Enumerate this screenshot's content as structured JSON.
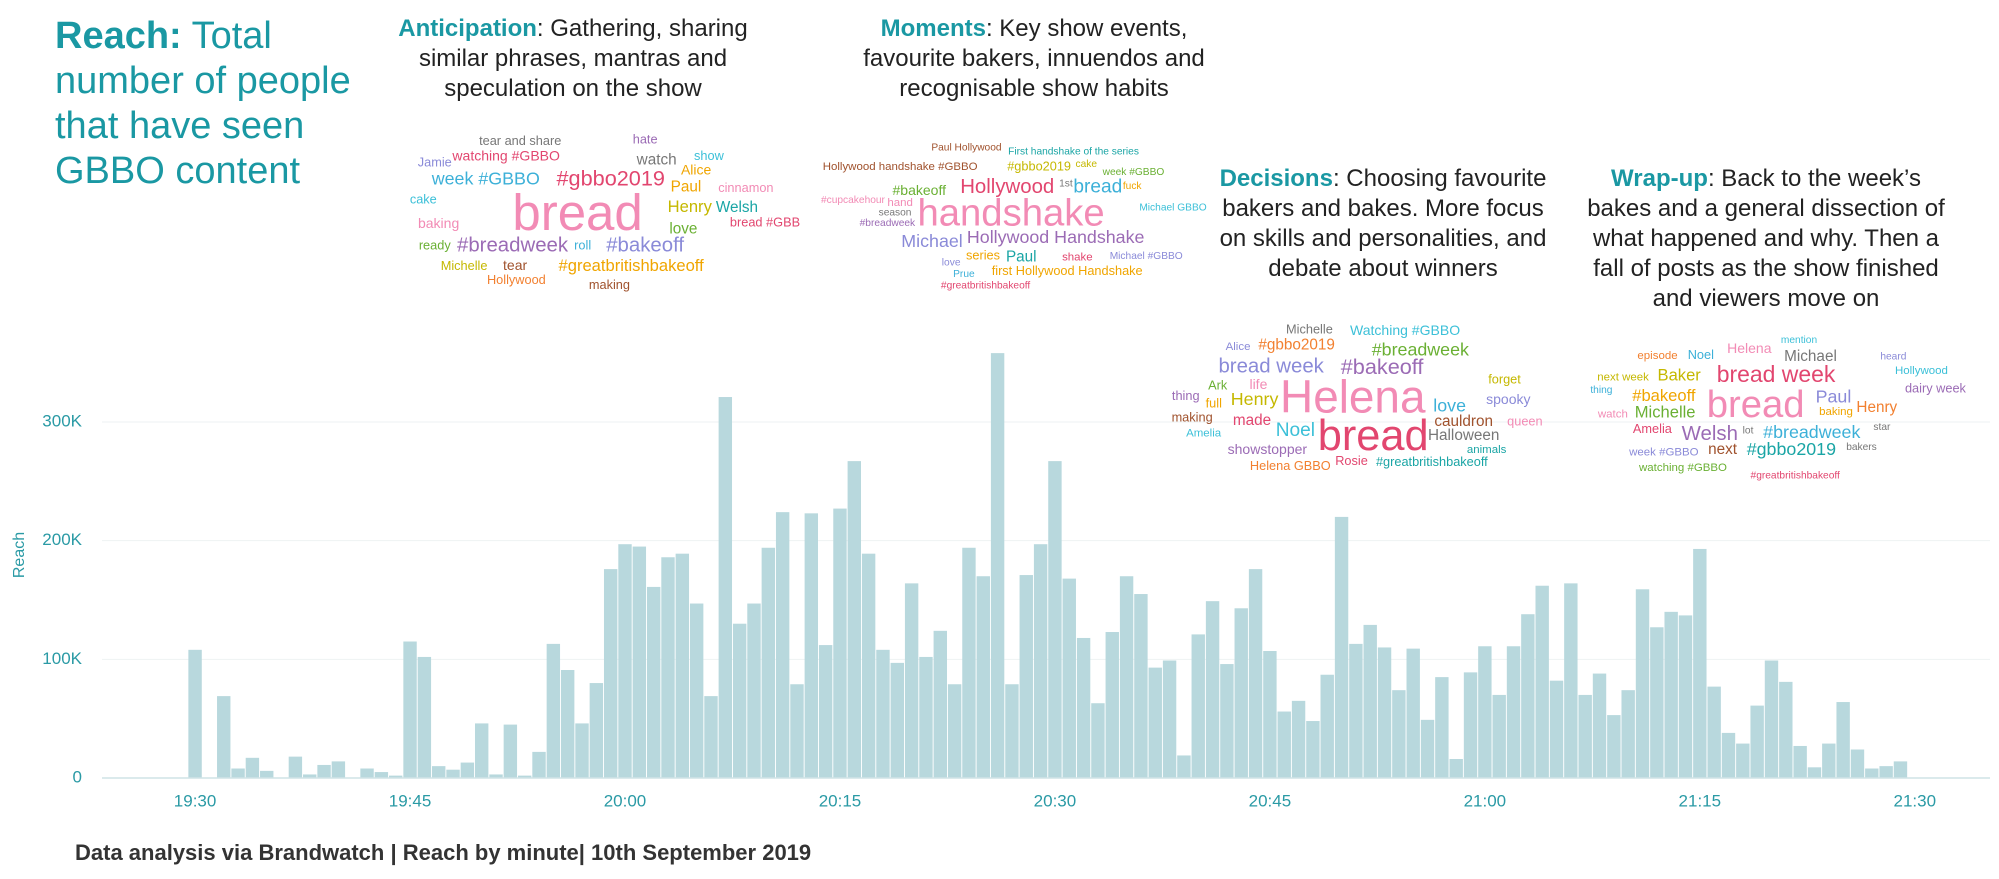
{
  "chart_data": {
    "type": "bar",
    "title": {
      "head": "Reach:",
      "text": "Total number of people that have seen GBBO content"
    },
    "y_label": "Reach",
    "source": "Data analysis via Brandwatch | Reach by minute| 10th September 2019",
    "categories": [
      "19:30",
      null,
      null,
      null,
      null,
      null,
      null,
      null,
      null,
      null,
      null,
      null,
      null,
      null,
      null,
      "19:45",
      null,
      null,
      null,
      null,
      null,
      null,
      null,
      null,
      null,
      null,
      null,
      null,
      null,
      null,
      "20:00",
      null,
      null,
      null,
      null,
      null,
      null,
      null,
      null,
      null,
      null,
      null,
      null,
      null,
      null,
      "20:15",
      null,
      null,
      null,
      null,
      null,
      null,
      null,
      null,
      null,
      null,
      null,
      null,
      null,
      null,
      "20:30",
      null,
      null,
      null,
      null,
      null,
      null,
      null,
      null,
      null,
      null,
      null,
      null,
      null,
      null,
      "20:45",
      null,
      null,
      null,
      null,
      null,
      null,
      null,
      null,
      null,
      null,
      null,
      null,
      null,
      null,
      "21:00",
      null,
      null,
      null,
      null,
      null,
      null,
      null,
      null,
      null,
      null,
      null,
      null,
      null,
      null,
      "21:15",
      null,
      null,
      null,
      null,
      null,
      null,
      null,
      null,
      null,
      null,
      null,
      null,
      null,
      null,
      "21:30"
    ],
    "values": [
      108000,
      0,
      69000,
      8000,
      17000,
      6000,
      0,
      18000,
      3000,
      11000,
      14000,
      0,
      8000,
      5000,
      2000,
      115000,
      102000,
      10000,
      7000,
      13000,
      46000,
      3000,
      45000,
      2000,
      22000,
      113000,
      91000,
      46000,
      80000,
      176000,
      197000,
      195000,
      161000,
      186000,
      189000,
      147000,
      69000,
      321000,
      130000,
      147000,
      194000,
      224000,
      79000,
      223000,
      112000,
      227000,
      267000,
      189000,
      108000,
      97000,
      164000,
      102000,
      124000,
      79000,
      194000,
      170000,
      358000,
      79000,
      171000,
      197000,
      267000,
      168000,
      118000,
      63000,
      123000,
      170000,
      155000,
      93000,
      99000,
      19000,
      121000,
      149000,
      96000,
      143000,
      176000,
      107000,
      56000,
      65000,
      48000,
      87000,
      220000,
      113000,
      129000,
      110000,
      74000,
      109000,
      49000,
      85000,
      16000,
      89000,
      111000,
      70000,
      111000,
      138000,
      162000,
      82000,
      164000,
      70000,
      88000,
      53000,
      74000,
      159000,
      127000,
      140000,
      137000,
      193000,
      77000,
      38000,
      29000,
      61000,
      99000,
      81000,
      27000,
      9000,
      29000,
      64000,
      24000,
      8000,
      10000,
      14000,
      null
    ],
    "color": "#b8d8dd",
    "ylim": [
      0,
      380000
    ],
    "yticks": [
      0,
      {
        "value": 100000,
        "label": "100K"
      },
      {
        "value": 200000,
        "label": "200K"
      },
      {
        "value": 300000,
        "label": "300K"
      }
    ],
    "grid": true
  },
  "annotations": [
    {
      "head": "Anticipation",
      "text": ": Gathering, sharing similar phrases, mantras and speculation on the show",
      "words": [
        "tear and share",
        "hate",
        "watching #GBBO",
        "show",
        "Jamie",
        "watch",
        "Alice",
        "week #GBBO",
        "#gbbo2019",
        "Paul",
        "cinnamon",
        "cake",
        "bread",
        "Henry",
        "Welsh",
        "baking",
        "bread #GBB",
        "love",
        "ready",
        "#breadweek",
        "roll",
        "#bakeoff",
        "Michelle",
        "tear",
        "#greatbritishbakeoff",
        "Hollywood",
        "making"
      ]
    },
    {
      "head": "Moments",
      "text": ": Key show events, favourite bakers, innuendos and recognisable show habits",
      "words": [
        "Paul Hollywood",
        "First handshake of the series",
        "Hollywood handshake #GBBO",
        "#gbbo2019",
        "cake",
        "week #GBBO",
        "fuck",
        "Hollywood",
        "1st",
        "bread",
        "#bakeoff",
        "#cupcakehour",
        "hand",
        "handshake",
        "Michael GBBO",
        "season",
        "#breadweek",
        "Michael",
        "Hollywood Handshake",
        "series",
        "Paul",
        "shake",
        "Michael #GBBO",
        "love",
        "Prue",
        "first Hollywood Handshake",
        "#greatbritishbakeoff"
      ]
    },
    {
      "head": "Decisions",
      "text": ": Choosing favourite bakers and bakes. More focus on skills and personalities, and debate about winners",
      "words": [
        "Michelle",
        "Watching #GBBO",
        "Alice",
        "#gbbo2019",
        "#breadweek",
        "bread week",
        "#bakeoff",
        "forget",
        "Ark",
        "life",
        "Helena",
        "spooky",
        "thing",
        "full",
        "Henry",
        "love",
        "making",
        "made",
        "cauldron",
        "queen",
        "Noel",
        "bread",
        "Amelia",
        "Halloween",
        "showstopper",
        "animals",
        "Rosie",
        "#greatbritishbakeoff",
        "Helena GBBO"
      ]
    },
    {
      "head": "Wrap-up",
      "text": ": Back to the week’s bakes and a general dissection of what happened and why. Then a fall of posts as the show finished and viewers move on",
      "words": [
        "mention",
        "Helena",
        "episode",
        "Noel",
        "Michael",
        "heard",
        "Hollywood",
        "next week",
        "Baker",
        "bread week",
        "thing",
        "dairy week",
        "#bakeoff",
        "bread",
        "Paul",
        "watch",
        "Michelle",
        "baking",
        "Henry",
        "Amelia",
        "Welsh",
        "lot",
        "#breadweek",
        "star",
        "week #GBBO",
        "next",
        "#gbbo2019",
        "bakers",
        "watching #GBBO",
        "#greatbritishbakeoff"
      ]
    }
  ]
}
